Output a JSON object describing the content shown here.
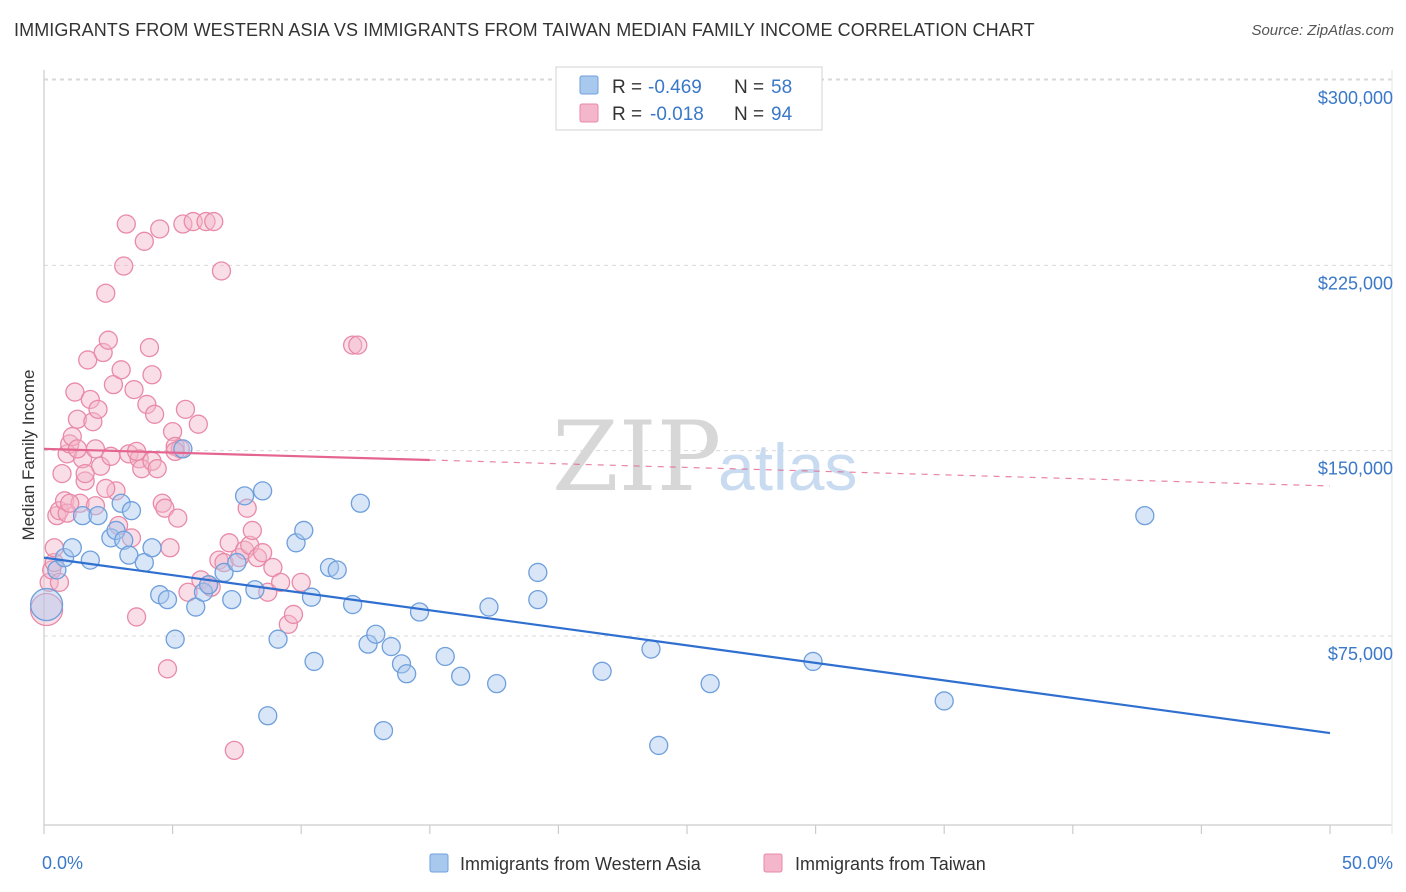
{
  "title": "IMMIGRANTS FROM WESTERN ASIA VS IMMIGRANTS FROM TAIWAN MEDIAN FAMILY INCOME CORRELATION CHART",
  "source": "Source: ZipAtlas.com",
  "watermark": {
    "zip": "ZIP",
    "atlas": "atlas"
  },
  "legend": {
    "rows": [
      {
        "r_label": "R =",
        "r_value": "-0.469",
        "n_label": "N =",
        "n_value": "58"
      },
      {
        "r_label": "R =",
        "r_value": "-0.018",
        "n_label": "N =",
        "n_value": "94"
      }
    ]
  },
  "bottom_legend": [
    "Immigrants from Western Asia",
    "Immigrants from Taiwan"
  ],
  "colors": {
    "blue_fill": "#a9c8ee",
    "blue_stroke": "#6f9fdc",
    "blue_line": "#2f6fd0",
    "pink_fill": "#f4b6ca",
    "pink_stroke": "#e88aa8",
    "pink_line": "#e4658f",
    "tick_label": "#3a78c9"
  },
  "chart_data": {
    "type": "scatter",
    "title": "IMMIGRANTS FROM WESTERN ASIA VS IMMIGRANTS FROM TAIWAN MEDIAN FAMILY INCOME CORRELATION CHART",
    "xlabel": "",
    "ylabel": "Median Family Income",
    "xlim": [
      0,
      50
    ],
    "ylim": [
      0,
      315000
    ],
    "x_tick_labels": [
      "0.0%",
      "50.0%"
    ],
    "y_ticks": [
      {
        "value": 75000,
        "label": "$75,000"
      },
      {
        "value": 150000,
        "label": "$150,000"
      },
      {
        "value": 225000,
        "label": "$225,000"
      },
      {
        "value": 300000,
        "label": "$300,000"
      }
    ],
    "grid": true,
    "legend_position": "top-center",
    "series": [
      {
        "name": "Immigrants from Western Asia",
        "R": -0.469,
        "N": 58,
        "trend": {
          "x0": 0,
          "y0": 114000,
          "x1": 50,
          "y1": 43000,
          "dashed_from_x": null
        },
        "points": [
          [
            0.1,
            95000
          ],
          [
            0.5,
            109000
          ],
          [
            0.8,
            114000
          ],
          [
            1.1,
            118000
          ],
          [
            1.5,
            131000
          ],
          [
            1.8,
            113000
          ],
          [
            2.1,
            131000
          ],
          [
            2.6,
            122000
          ],
          [
            2.8,
            125000
          ],
          [
            3.0,
            136000
          ],
          [
            3.1,
            121000
          ],
          [
            3.3,
            115000
          ],
          [
            3.9,
            112000
          ],
          [
            4.2,
            118000
          ],
          [
            4.5,
            99000
          ],
          [
            4.8,
            97000
          ],
          [
            5.1,
            81000
          ],
          [
            5.4,
            158000
          ],
          [
            5.9,
            94000
          ],
          [
            6.2,
            100000
          ],
          [
            6.4,
            103000
          ],
          [
            7.0,
            108000
          ],
          [
            7.3,
            97000
          ],
          [
            7.5,
            112000
          ],
          [
            7.8,
            139000
          ],
          [
            8.2,
            101000
          ],
          [
            8.5,
            141000
          ],
          [
            8.7,
            50000
          ],
          [
            9.1,
            81000
          ],
          [
            9.8,
            120000
          ],
          [
            10.1,
            125000
          ],
          [
            10.4,
            98000
          ],
          [
            10.5,
            72000
          ],
          [
            11.1,
            110000
          ],
          [
            11.4,
            109000
          ],
          [
            12.0,
            95000
          ],
          [
            12.3,
            136000
          ],
          [
            12.6,
            79000
          ],
          [
            12.9,
            83000
          ],
          [
            13.2,
            44000
          ],
          [
            13.5,
            78000
          ],
          [
            13.9,
            71000
          ],
          [
            14.1,
            67000
          ],
          [
            14.6,
            92000
          ],
          [
            15.6,
            74000
          ],
          [
            16.2,
            66000
          ],
          [
            17.3,
            94000
          ],
          [
            17.6,
            63000
          ],
          [
            19.2,
            97000
          ],
          [
            19.2,
            108000
          ],
          [
            21.7,
            68000
          ],
          [
            23.6,
            77000
          ],
          [
            23.9,
            38000
          ],
          [
            25.9,
            63000
          ],
          [
            29.9,
            72000
          ],
          [
            35.0,
            56000
          ],
          [
            42.8,
            131000
          ],
          [
            3.4,
            133000
          ]
        ]
      },
      {
        "name": "Immigrants from Taiwan",
        "R": -0.018,
        "N": 94,
        "trend": {
          "x0": 0,
          "y0": 158000,
          "x1": 50,
          "y1": 143000,
          "dashed_from_x": 15
        },
        "points": [
          [
            0.1,
            93000
          ],
          [
            0.2,
            104000
          ],
          [
            0.3,
            109000
          ],
          [
            0.4,
            112000
          ],
          [
            0.5,
            131000
          ],
          [
            0.6,
            133000
          ],
          [
            0.7,
            148000
          ],
          [
            0.8,
            137000
          ],
          [
            0.9,
            156000
          ],
          [
            1.0,
            160000
          ],
          [
            1.1,
            163000
          ],
          [
            1.2,
            181000
          ],
          [
            1.3,
            170000
          ],
          [
            1.4,
            136000
          ],
          [
            1.5,
            154000
          ],
          [
            1.6,
            145000
          ],
          [
            1.7,
            194000
          ],
          [
            1.8,
            178000
          ],
          [
            1.9,
            169000
          ],
          [
            2.0,
            158000
          ],
          [
            2.1,
            174000
          ],
          [
            2.2,
            151000
          ],
          [
            2.3,
            197000
          ],
          [
            2.4,
            221000
          ],
          [
            2.5,
            202000
          ],
          [
            2.6,
            155000
          ],
          [
            2.7,
            184000
          ],
          [
            2.8,
            141000
          ],
          [
            2.9,
            127000
          ],
          [
            3.0,
            190000
          ],
          [
            3.1,
            232000
          ],
          [
            3.2,
            249000
          ],
          [
            3.3,
            156000
          ],
          [
            3.4,
            122000
          ],
          [
            3.5,
            182000
          ],
          [
            3.6,
            90000
          ],
          [
            3.7,
            154000
          ],
          [
            3.8,
            150000
          ],
          [
            3.9,
            242000
          ],
          [
            4.0,
            176000
          ],
          [
            4.1,
            199000
          ],
          [
            4.2,
            153000
          ],
          [
            4.3,
            172000
          ],
          [
            4.4,
            150000
          ],
          [
            4.5,
            247000
          ],
          [
            4.6,
            136000
          ],
          [
            4.7,
            134000
          ],
          [
            4.8,
            69000
          ],
          [
            4.9,
            118000
          ],
          [
            5.0,
            165000
          ],
          [
            5.1,
            159000
          ],
          [
            5.2,
            130000
          ],
          [
            5.3,
            158000
          ],
          [
            5.4,
            249000
          ],
          [
            5.5,
            174000
          ],
          [
            5.6,
            100000
          ],
          [
            5.8,
            250000
          ],
          [
            6.0,
            168000
          ],
          [
            6.1,
            105000
          ],
          [
            6.3,
            250000
          ],
          [
            6.5,
            102000
          ],
          [
            6.6,
            250000
          ],
          [
            6.8,
            113000
          ],
          [
            6.9,
            230000
          ],
          [
            7.0,
            112000
          ],
          [
            7.2,
            120000
          ],
          [
            7.4,
            36000
          ],
          [
            7.6,
            114000
          ],
          [
            7.8,
            117000
          ],
          [
            7.9,
            134000
          ],
          [
            8.0,
            119000
          ],
          [
            8.1,
            125000
          ],
          [
            8.3,
            114000
          ],
          [
            8.5,
            116000
          ],
          [
            8.7,
            100000
          ],
          [
            8.9,
            110000
          ],
          [
            9.2,
            104000
          ],
          [
            9.5,
            87000
          ],
          [
            9.7,
            91000
          ],
          [
            10.0,
            104000
          ],
          [
            12.0,
            200000
          ],
          [
            12.2,
            200000
          ],
          [
            1.3,
            158000
          ],
          [
            2.0,
            135000
          ],
          [
            0.9,
            132000
          ],
          [
            1.6,
            148000
          ],
          [
            2.4,
            142000
          ],
          [
            3.6,
            157000
          ],
          [
            4.2,
            188000
          ],
          [
            5.1,
            157000
          ],
          [
            0.4,
            118000
          ],
          [
            0.6,
            104000
          ],
          [
            1.0,
            136000
          ],
          [
            6.4,
            103000
          ]
        ]
      }
    ]
  }
}
